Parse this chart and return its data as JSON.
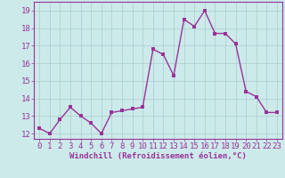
{
  "x": [
    0,
    1,
    2,
    3,
    4,
    5,
    6,
    7,
    8,
    9,
    10,
    11,
    12,
    13,
    14,
    15,
    16,
    17,
    18,
    19,
    20,
    21,
    22,
    23
  ],
  "y": [
    12.3,
    12.0,
    12.8,
    13.5,
    13.0,
    12.6,
    12.0,
    13.2,
    13.3,
    13.4,
    13.5,
    16.8,
    16.5,
    15.3,
    18.5,
    18.1,
    19.0,
    17.7,
    17.7,
    17.1,
    14.4,
    14.1,
    13.2,
    13.2
  ],
  "line_color": "#993399",
  "marker_color": "#993399",
  "bg_color": "#cceaea",
  "grid_color": "#aacccc",
  "xlabel": "Windchill (Refroidissement éolien,°C)",
  "ylabel_ticks": [
    12,
    13,
    14,
    15,
    16,
    17,
    18,
    19
  ],
  "xlim": [
    -0.5,
    23.5
  ],
  "ylim": [
    11.7,
    19.5
  ],
  "xlabel_fontsize": 6.5,
  "tick_fontsize": 6.5,
  "line_width": 1.0,
  "marker_size": 2.5
}
